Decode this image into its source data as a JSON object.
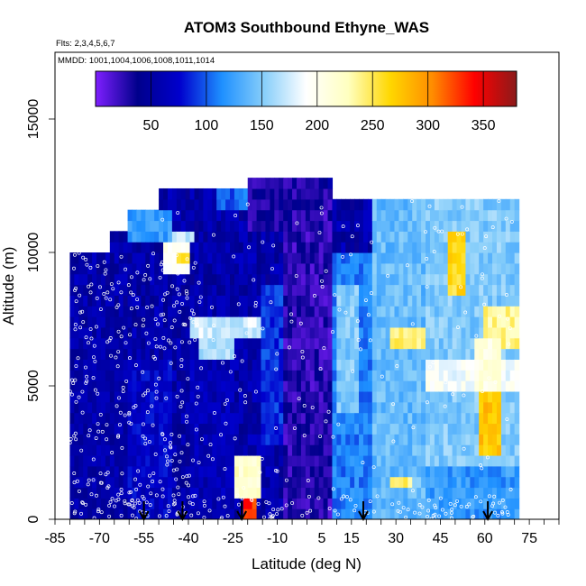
{
  "chart_data": {
    "type": "heatmap",
    "title": "ATOM3 Southbound Ethyne_WAS",
    "subtitle_flights": "Flts: 2,3,4,5,6,7",
    "subtitle_dates": "MMDD: 1001,1004,1006,1008,1011,1014",
    "xlabel": "Latitude (deg N)",
    "ylabel": "Altitude (m)",
    "xlim": [
      -85,
      85
    ],
    "ylim": [
      0,
      17500
    ],
    "x_ticks": [
      -85,
      -70,
      -55,
      -40,
      -25,
      -10,
      5,
      15,
      30,
      45,
      60,
      75
    ],
    "x_minor_step": 5,
    "y_ticks": [
      0,
      5000,
      10000,
      15000
    ],
    "colorbar": {
      "range": [
        0,
        380
      ],
      "ticks": [
        50,
        100,
        150,
        200,
        250,
        300,
        350
      ],
      "colors": [
        "#7f1fff",
        "#00008b",
        "#0000cd",
        "#1e90ff",
        "#87cefa",
        "#ffffff",
        "#ffffc0",
        "#ffd700",
        "#ff8c00",
        "#ff0000",
        "#8b1a1a"
      ]
    },
    "flight_arrows_lat": [
      -55,
      -42,
      -22,
      19,
      61
    ],
    "background_value": 55,
    "data_coverage": [
      {
        "lat": [
          -80,
          -66
        ],
        "alt": [
          0,
          10000
        ]
      },
      {
        "lat": [
          -66,
          -60
        ],
        "alt": [
          0,
          11000
        ]
      },
      {
        "lat": [
          -60,
          -50
        ],
        "alt": [
          0,
          11800
        ]
      },
      {
        "lat": [
          -50,
          -20
        ],
        "alt": [
          0,
          12400
        ]
      },
      {
        "lat": [
          -20,
          8
        ],
        "alt": [
          0,
          12900
        ]
      },
      {
        "lat": [
          8,
          72
        ],
        "alt": [
          0,
          12000
        ]
      }
    ],
    "features": [
      {
        "lat": [
          -22,
          -17
        ],
        "alt": [
          0,
          1800
        ],
        "value": 330
      },
      {
        "lat": [
          -24,
          -15
        ],
        "alt": [
          1000,
          2300
        ],
        "value": 220
      },
      {
        "lat": [
          -48,
          -40
        ],
        "alt": [
          9300,
          10300
        ],
        "value": 200
      },
      {
        "lat": [
          -44,
          -40
        ],
        "alt": [
          9600,
          10100
        ],
        "value": 260
      },
      {
        "lat": [
          -45,
          -38
        ],
        "alt": [
          10300,
          11000
        ],
        "value": 170
      },
      {
        "lat": [
          -40,
          -15
        ],
        "alt": [
          7000,
          7500
        ],
        "value": 175
      },
      {
        "lat": [
          -36,
          -25
        ],
        "alt": [
          6200,
          7000
        ],
        "value": 160
      },
      {
        "lat": [
          -15,
          -8
        ],
        "alt": [
          3000,
          9000
        ],
        "value": 90
      },
      {
        "lat": [
          -8,
          8
        ],
        "alt": [
          0,
          12500
        ],
        "value": 25
      },
      {
        "lat": [
          -20,
          5
        ],
        "alt": [
          10800,
          12800
        ],
        "value": 30
      },
      {
        "lat": [
          8,
          22
        ],
        "alt": [
          0,
          10000
        ],
        "value": 110
      },
      {
        "lat": [
          10,
          18
        ],
        "alt": [
          4000,
          9000
        ],
        "value": 150
      },
      {
        "lat": [
          22,
          40
        ],
        "alt": [
          0,
          12000
        ],
        "value": 140
      },
      {
        "lat": [
          28,
          45
        ],
        "alt": [
          6500,
          7300
        ],
        "value": 240
      },
      {
        "lat": [
          28,
          36
        ],
        "alt": [
          1200,
          1800
        ],
        "value": 245
      },
      {
        "lat": [
          40,
          72
        ],
        "alt": [
          2000,
          12000
        ],
        "value": 150
      },
      {
        "lat": [
          48,
          54
        ],
        "alt": [
          8500,
          10800
        ],
        "value": 260
      },
      {
        "lat": [
          58,
          66
        ],
        "alt": [
          2500,
          5000
        ],
        "value": 275
      },
      {
        "lat": [
          40,
          72
        ],
        "alt": [
          0,
          2000
        ],
        "value": 120
      },
      {
        "lat": [
          60,
          72
        ],
        "alt": [
          6500,
          8000
        ],
        "value": 235
      },
      {
        "lat": [
          40,
          72
        ],
        "alt": [
          4800,
          6200
        ],
        "value": 190
      },
      {
        "lat": [
          56,
          66
        ],
        "alt": [
          5000,
          6800
        ],
        "value": 210
      },
      {
        "lat": [
          -80,
          -60
        ],
        "alt": [
          0,
          8000
        ],
        "value": 55
      },
      {
        "lat": [
          -60,
          -45
        ],
        "alt": [
          0,
          6000
        ],
        "value": 70
      },
      {
        "lat": [
          -40,
          -25
        ],
        "alt": [
          0,
          6000
        ],
        "value": 62
      },
      {
        "lat": [
          -60,
          -45
        ],
        "alt": [
          10500,
          11800
        ],
        "value": 120
      },
      {
        "lat": [
          -30,
          -20
        ],
        "alt": [
          11500,
          12400
        ],
        "value": 100
      }
    ]
  }
}
